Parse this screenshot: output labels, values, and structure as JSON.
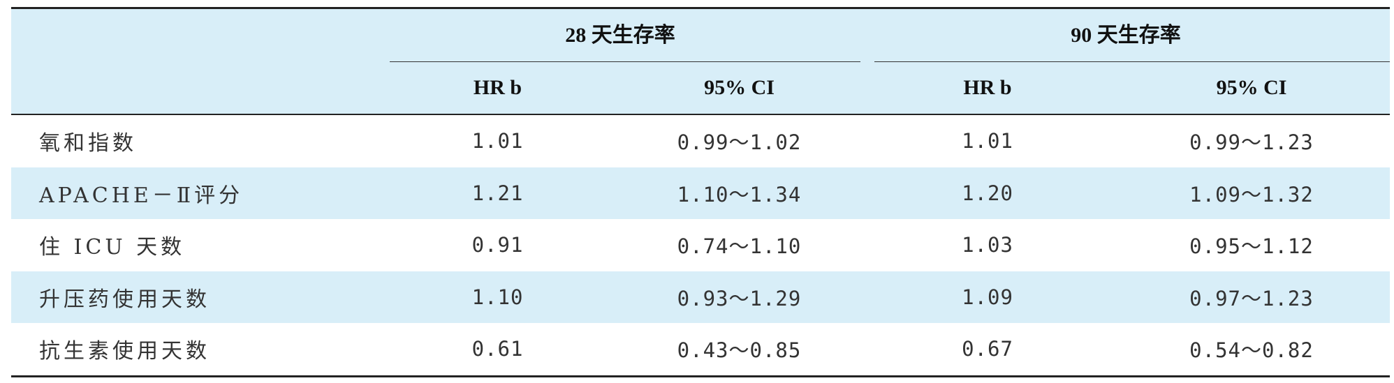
{
  "header": {
    "group_28": "28 天生存率",
    "group_90": "90 天生存率",
    "sub": [
      "HR b",
      "95% CI",
      "HR b",
      "95% CI"
    ]
  },
  "rows": [
    {
      "label": "氧和指数",
      "hr28": "1.01",
      "ci28": "0.99～1.02",
      "hr90": "1.01",
      "ci90": "0.99～1.23"
    },
    {
      "label": "APACHE－Ⅱ评分",
      "hr28": "1.21",
      "ci28": "1.10～1.34",
      "hr90": "1.20",
      "ci90": "1.09～1.32"
    },
    {
      "label": "住 ICU 天数",
      "hr28": "0.91",
      "ci28": "0.74～1.10",
      "hr90": "1.03",
      "ci90": "0.95～1.12"
    },
    {
      "label": "升压药使用天数",
      "hr28": "1.10",
      "ci28": "0.93～1.29",
      "hr90": "1.09",
      "ci90": "0.97～1.23"
    },
    {
      "label": "抗生素使用天数",
      "hr28": "0.61",
      "ci28": "0.43～0.85",
      "hr90": "0.67",
      "ci90": "0.54～0.82"
    }
  ],
  "colors": {
    "header_bg": "#d8eef8",
    "shade_bg": "#d8eef8",
    "rule": "#222222"
  }
}
